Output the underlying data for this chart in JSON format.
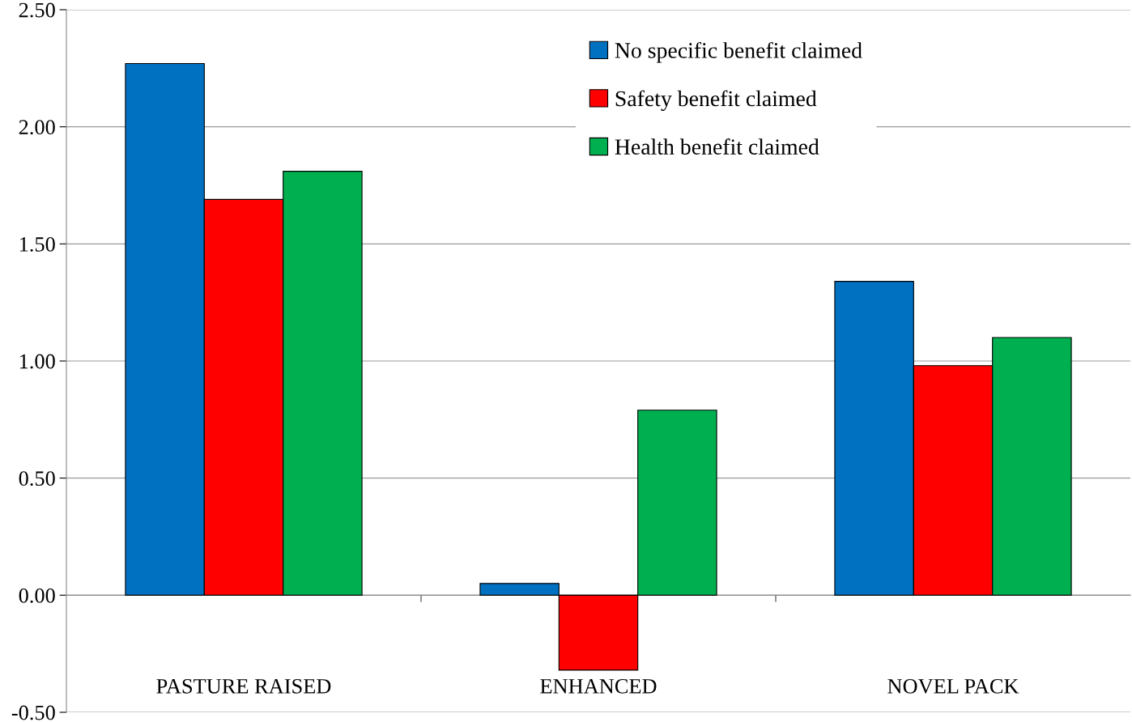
{
  "chart_data": {
    "type": "bar",
    "categories": [
      "PASTURE RAISED",
      "ENHANCED",
      "NOVEL PACK"
    ],
    "series": [
      {
        "name": "No specific benefit claimed",
        "color": "#0070c0",
        "values": [
          2.27,
          0.05,
          1.34
        ]
      },
      {
        "name": "Safety benefit claimed",
        "color": "#ff0000",
        "values": [
          1.69,
          -0.32,
          0.98
        ]
      },
      {
        "name": "Health benefit claimed",
        "color": "#00b050",
        "values": [
          1.81,
          0.79,
          1.1
        ]
      }
    ],
    "ylim": [
      -0.5,
      2.5
    ],
    "yticks": [
      {
        "value": -0.5,
        "label": "-0.50"
      },
      {
        "value": 0,
        "label": "0.00"
      },
      {
        "value": 0.5,
        "label": "0.50"
      },
      {
        "value": 1,
        "label": "1.00"
      },
      {
        "value": 1.5,
        "label": "1.50"
      },
      {
        "value": 2,
        "label": "2.00"
      },
      {
        "value": 2.5,
        "label": "2.50"
      }
    ],
    "grid": "y",
    "legend": "top"
  }
}
